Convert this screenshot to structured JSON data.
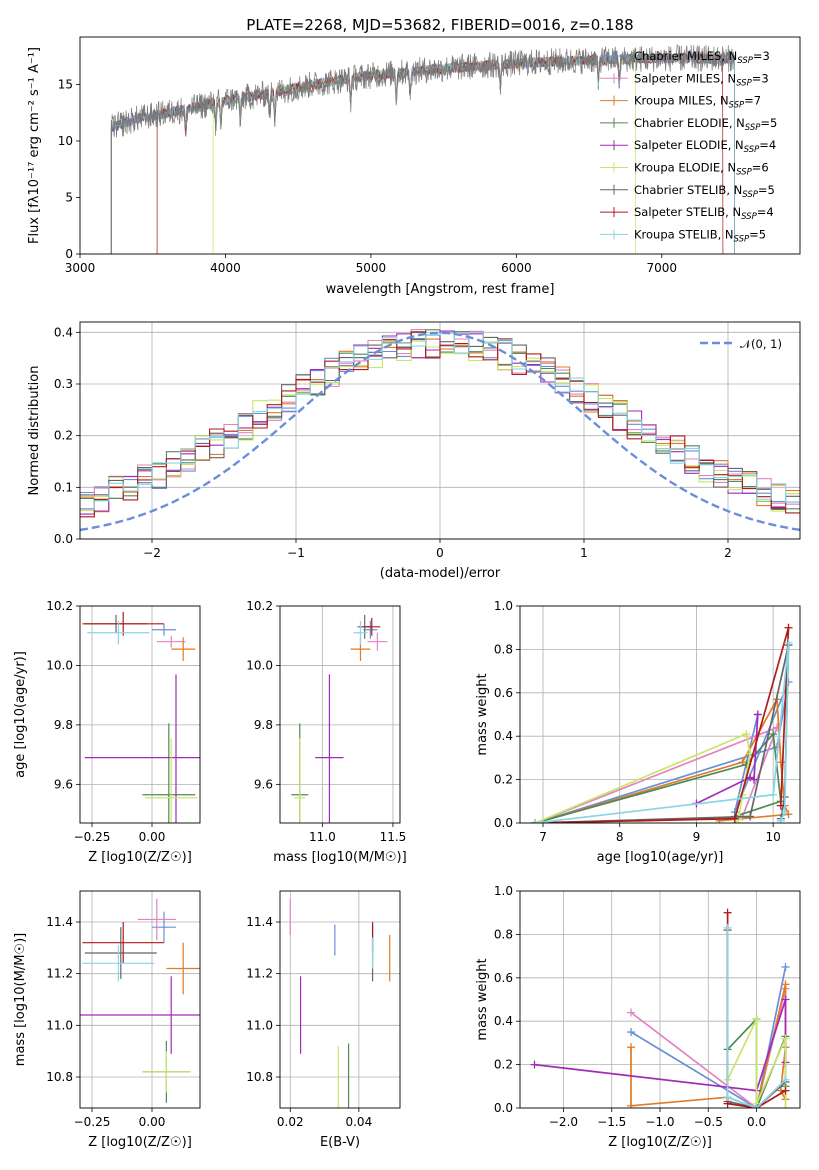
{
  "figure_title": "PLATE=2268, MJD=53682, FIBERID=0016, z=0.188",
  "colors": {
    "Chabrier MILES": "#6a8fd8",
    "Salpeter MILES": "#e383c1",
    "Kroupa MILES": "#e07b26",
    "Chabrier ELODIE": "#4e8a5a",
    "Salpeter ELODIE": "#a32ab8",
    "Kroupa ELODIE": "#c8e66a",
    "Chabrier STELIB": "#666666",
    "Salpeter STELIB": "#b01a1a",
    "Kroupa STELIB": "#86d6e6",
    "normal": "#6a8fd8"
  },
  "chart_data": [
    {
      "id": "spectrum",
      "type": "line",
      "title": "PLATE=2268, MJD=53682, FIBERID=0016, z=0.188",
      "xlabel": "wavelength [Angstrom, rest frame]",
      "ylabel": "Flux [f_λ 10^-17 erg cm^-2 s^-1 A^-1]",
      "xlim": [
        3000,
        7950
      ],
      "ylim": [
        0,
        19.2
      ],
      "xticks": [
        3000,
        4000,
        5000,
        6000,
        7000
      ],
      "yticks": [
        0,
        5,
        10,
        15
      ],
      "grid": false,
      "legend_position": "top-right",
      "spectrum_range": [
        3215,
        7500
      ],
      "continuum": {
        "x": [
          3215,
          3400,
          3600,
          3800,
          4000,
          4300,
          4600,
          5000,
          5400,
          5800,
          6200,
          6600,
          7000,
          7500
        ],
        "y": [
          11.2,
          12.0,
          12.5,
          13.0,
          13.6,
          14.2,
          15.0,
          15.8,
          16.3,
          16.7,
          17.0,
          17.2,
          17.3,
          17.3
        ]
      },
      "model_start_x": [
        3215,
        3215,
        3215,
        3215,
        3215,
        3915,
        3215,
        3530,
        3215
      ],
      "model_end_x": [
        7500,
        7500,
        7500,
        7500,
        7500,
        6820,
        7500,
        7420,
        7500
      ],
      "series": [
        {
          "name": "Chabrier MILES",
          "nssp": "3"
        },
        {
          "name": "Salpeter MILES",
          "nssp": "3"
        },
        {
          "name": "Kroupa MILES",
          "nssp": "7"
        },
        {
          "name": "Chabrier ELODIE",
          "nssp": "5"
        },
        {
          "name": "Salpeter ELODIE",
          "nssp": "4"
        },
        {
          "name": "Kroupa ELODIE",
          "nssp": "6"
        },
        {
          "name": "Chabrier STELIB",
          "nssp": "5"
        },
        {
          "name": "Salpeter STELIB",
          "nssp": "4"
        },
        {
          "name": "Kroupa STELIB",
          "nssp": "5"
        }
      ]
    },
    {
      "id": "residuals",
      "type": "histogram",
      "xlabel": "(data-model)/error",
      "ylabel": "Normed distribution",
      "xlim": [
        -2.5,
        2.5
      ],
      "ylim": [
        0,
        0.42
      ],
      "xticks": [
        -2,
        -1,
        0,
        1,
        2
      ],
      "yticks": [
        0.0,
        0.1,
        0.2,
        0.3,
        0.4
      ],
      "grid": true,
      "legend_position": "top-right",
      "normal_label": "𝒩(0, 1)",
      "bin_width": 0.1
    },
    {
      "id": "age_vs_Z",
      "type": "errorbar",
      "xlabel": "Z [log10(Z/Z☉)]",
      "ylabel": "age [log10(age/yr)]",
      "xlim": [
        -0.3,
        0.2
      ],
      "ylim": [
        9.47,
        10.2
      ],
      "xticks": [
        -0.25,
        0.0
      ],
      "yticks": [
        9.6,
        9.8,
        10.0,
        10.2
      ],
      "grid": true,
      "points": [
        {
          "series": "Chabrier MILES",
          "x": 0.05,
          "y": 10.12,
          "xerr": 0.05,
          "yerr": 0.02
        },
        {
          "series": "Salpeter MILES",
          "x": 0.08,
          "y": 10.08,
          "xerr": 0.06,
          "yerr": 0.02
        },
        {
          "series": "Kroupa MILES",
          "x": 0.13,
          "y": 10.055,
          "xerr": 0.05,
          "yerr": 0.04
        },
        {
          "series": "Chabrier ELODIE",
          "x": 0.07,
          "y": 9.565,
          "xerr": 0.11,
          "yerr": 0.24
        },
        {
          "series": "Salpeter ELODIE",
          "x": 0.1,
          "y": 9.69,
          "xerr": 0.38,
          "yerr": 0.28
        },
        {
          "series": "Kroupa ELODIE",
          "x": 0.08,
          "y": 9.555,
          "xerr": 0.11,
          "yerr": 0.2
        },
        {
          "series": "Chabrier STELIB",
          "x": -0.15,
          "y": 10.14,
          "xerr": 0.13,
          "yerr": 0.03
        },
        {
          "series": "Salpeter STELIB",
          "x": -0.12,
          "y": 10.14,
          "xerr": 0.17,
          "yerr": 0.04
        },
        {
          "series": "Kroupa STELIB",
          "x": -0.14,
          "y": 10.11,
          "xerr": 0.13,
          "yerr": 0.04
        }
      ]
    },
    {
      "id": "age_vs_mass",
      "type": "errorbar",
      "xlabel": "mass [log10(M/M☉)]",
      "ylabel": "",
      "xlim": [
        10.7,
        11.55
      ],
      "ylim": [
        9.47,
        10.2
      ],
      "xticks": [
        11.0,
        11.5
      ],
      "yticks": [
        9.6,
        9.8,
        10.0,
        10.2
      ],
      "grid": true,
      "points": [
        {
          "series": "Chabrier MILES",
          "x": 11.34,
          "y": 10.12,
          "xerr": 0.05,
          "yerr": 0.03
        },
        {
          "series": "Salpeter MILES",
          "x": 11.39,
          "y": 10.08,
          "xerr": 0.07,
          "yerr": 0.03
        },
        {
          "series": "Kroupa MILES",
          "x": 11.27,
          "y": 10.055,
          "xerr": 0.07,
          "yerr": 0.04
        },
        {
          "series": "Chabrier ELODIE",
          "x": 10.84,
          "y": 9.565,
          "xerr": 0.06,
          "yerr": 0.24
        },
        {
          "series": "Salpeter ELODIE",
          "x": 11.05,
          "y": 9.69,
          "xerr": 0.1,
          "yerr": 0.28
        },
        {
          "series": "Kroupa ELODIE",
          "x": 10.84,
          "y": 9.555,
          "xerr": 0.04,
          "yerr": 0.2
        },
        {
          "series": "Chabrier STELIB",
          "x": 11.3,
          "y": 10.13,
          "xerr": 0.05,
          "yerr": 0.04
        },
        {
          "series": "Salpeter STELIB",
          "x": 11.35,
          "y": 10.13,
          "xerr": 0.06,
          "yerr": 0.03
        },
        {
          "series": "Kroupa STELIB",
          "x": 11.27,
          "y": 10.11,
          "xerr": 0.05,
          "yerr": 0.04
        }
      ]
    },
    {
      "id": "weight_vs_age",
      "type": "line",
      "xlabel": "age [log10(age/yr)]",
      "ylabel": "mass weight",
      "xlim": [
        6.7,
        10.35
      ],
      "ylim": [
        0,
        1.0
      ],
      "xticks": [
        7,
        8,
        9,
        10
      ],
      "yticks": [
        0.0,
        0.2,
        0.4,
        0.6,
        0.8,
        1.0
      ],
      "grid": true,
      "series": [
        {
          "name": "Chabrier MILES",
          "x": [
            6.9,
            10.05,
            10.2,
            9.5,
            9.8
          ],
          "y": [
            0.0,
            0.35,
            0.65,
            0.05,
            0.5
          ]
        },
        {
          "name": "Salpeter MILES",
          "x": [
            6.9,
            10.05,
            9.6
          ],
          "y": [
            0.0,
            0.44,
            0.03
          ]
        },
        {
          "name": "Kroupa MILES",
          "x": [
            6.9,
            9.6,
            10.05,
            10.1,
            10.15,
            10.2,
            9.3
          ],
          "y": [
            0.0,
            0.28,
            0.57,
            0.28,
            0.08,
            0.04,
            0.01
          ]
        },
        {
          "name": "Chabrier ELODIE",
          "x": [
            6.9,
            9.65,
            10.0,
            10.1,
            9.5
          ],
          "y": [
            0.0,
            0.27,
            0.41,
            0.1,
            0.03
          ]
        },
        {
          "name": "Salpeter ELODIE",
          "x": [
            9.0,
            9.7,
            9.75,
            9.8
          ],
          "y": [
            0.09,
            0.21,
            0.2,
            0.5
          ]
        },
        {
          "name": "Kroupa ELODIE",
          "x": [
            6.9,
            9.65,
            9.7,
            9.6,
            9.55,
            9.5
          ],
          "y": [
            0.0,
            0.41,
            0.32,
            0.13,
            0.02,
            0.0
          ]
        },
        {
          "name": "Chabrier STELIB",
          "x": [
            6.9,
            9.7,
            10.2,
            10.15,
            10.1
          ],
          "y": [
            0.0,
            0.03,
            0.82,
            0.12,
            0.02
          ]
        },
        {
          "name": "Salpeter STELIB",
          "x": [
            6.9,
            9.5,
            10.2,
            10.1
          ],
          "y": [
            0.0,
            0.02,
            0.9,
            0.08
          ]
        },
        {
          "name": "Kroupa STELIB",
          "x": [
            6.9,
            10.0,
            10.2,
            10.15,
            10.1
          ],
          "y": [
            0.0,
            0.13,
            0.83,
            0.05,
            0.01
          ]
        }
      ]
    },
    {
      "id": "mass_vs_Z",
      "type": "errorbar",
      "xlabel": "Z [log10(Z/Z☉)]",
      "ylabel": "mass [log10(M/M☉)]",
      "xlim": [
        -0.3,
        0.2
      ],
      "ylim": [
        10.68,
        11.52
      ],
      "xticks": [
        -0.25,
        0.0
      ],
      "yticks": [
        10.8,
        11.0,
        11.2,
        11.4
      ],
      "grid": true,
      "points": [
        {
          "series": "Chabrier MILES",
          "x": 0.05,
          "y": 11.38,
          "xerr": 0.05,
          "yerr": 0.06
        },
        {
          "series": "Salpeter MILES",
          "x": 0.02,
          "y": 11.41,
          "xerr": 0.08,
          "yerr": 0.08
        },
        {
          "series": "Kroupa MILES",
          "x": 0.13,
          "y": 11.22,
          "xerr": 0.07,
          "yerr": 0.1
        },
        {
          "series": "Chabrier ELODIE",
          "x": 0.06,
          "y": 10.82,
          "xerr": 0.1,
          "yerr": 0.12
        },
        {
          "series": "Salpeter ELODIE",
          "x": 0.08,
          "y": 11.04,
          "xerr": 0.38,
          "yerr": 0.15
        },
        {
          "series": "Kroupa ELODIE",
          "x": 0.06,
          "y": 10.82,
          "xerr": 0.1,
          "yerr": 0.08
        },
        {
          "series": "Chabrier STELIB",
          "x": -0.13,
          "y": 11.28,
          "xerr": 0.15,
          "yerr": 0.1
        },
        {
          "series": "Salpeter STELIB",
          "x": -0.12,
          "y": 11.32,
          "xerr": 0.17,
          "yerr": 0.08
        },
        {
          "series": "Kroupa STELIB",
          "x": -0.14,
          "y": 11.24,
          "xerr": 0.15,
          "yerr": 0.07
        }
      ]
    },
    {
      "id": "mass_vs_ebv",
      "type": "errorbar",
      "xlabel": "E(B-V)",
      "ylabel": "",
      "xlim": [
        0.017,
        0.052
      ],
      "ylim": [
        10.68,
        11.52
      ],
      "xticks": [
        0.02,
        0.04
      ],
      "yticks": [
        10.8,
        11.0,
        11.2,
        11.4
      ],
      "grid": true,
      "points": [
        {
          "series": "Chabrier MILES",
          "x": 0.033,
          "y": 11.33,
          "xerr": 0.0,
          "yerr": 0.06
        },
        {
          "series": "Salpeter MILES",
          "x": 0.02,
          "y": 11.42,
          "xerr": 0.0,
          "yerr": 0.07
        },
        {
          "series": "Kroupa MILES",
          "x": 0.049,
          "y": 11.26,
          "xerr": 0.0,
          "yerr": 0.09
        },
        {
          "series": "Chabrier ELODIE",
          "x": 0.037,
          "y": 10.8,
          "xerr": 0.0,
          "yerr": 0.13
        },
        {
          "series": "Salpeter ELODIE",
          "x": 0.023,
          "y": 11.04,
          "xerr": 0.0,
          "yerr": 0.15
        },
        {
          "series": "Kroupa ELODIE",
          "x": 0.034,
          "y": 10.8,
          "xerr": 0.0,
          "yerr": 0.12
        },
        {
          "series": "Chabrier STELIB",
          "x": 0.044,
          "y": 11.28,
          "xerr": 0.0,
          "yerr": 0.11
        },
        {
          "series": "Salpeter STELIB",
          "x": 0.044,
          "y": 11.34,
          "xerr": 0.0,
          "yerr": 0.06
        },
        {
          "series": "Kroupa STELIB",
          "x": 0.044,
          "y": 11.28,
          "xerr": 0.0,
          "yerr": 0.06
        }
      ]
    },
    {
      "id": "weight_vs_Z",
      "type": "line",
      "xlabel": "Z [log10(Z/Z☉)]",
      "ylabel": "mass weight",
      "xlim": [
        -2.45,
        0.45
      ],
      "ylim": [
        0,
        1.0
      ],
      "xticks": [
        -2.0,
        -1.5,
        -1.0,
        -0.5,
        0.0
      ],
      "yticks": [
        0.0,
        0.2,
        0.4,
        0.6,
        0.8,
        1.0
      ],
      "grid": true,
      "series": [
        {
          "name": "Chabrier MILES",
          "x": [
            -1.3,
            0.0,
            0.3
          ],
          "y": [
            0.35,
            0.0,
            0.65
          ]
        },
        {
          "name": "Salpeter MILES",
          "x": [
            -1.3,
            0.0,
            0.3
          ],
          "y": [
            0.44,
            0.0,
            0.55
          ]
        },
        {
          "name": "Kroupa MILES",
          "x": [
            -1.3,
            -1.3,
            -0.3,
            0.0,
            0.3,
            0.3,
            0.25,
            0.3
          ],
          "y": [
            0.28,
            0.01,
            0.05,
            0.0,
            0.57,
            0.04,
            0.08,
            0.28
          ]
        },
        {
          "name": "Chabrier ELODIE",
          "x": [
            -0.3,
            0.0,
            0.0,
            0.3,
            0.3
          ],
          "y": [
            0.27,
            0.41,
            0.0,
            0.33,
            0.1
          ]
        },
        {
          "name": "Salpeter ELODIE",
          "x": [
            -2.3,
            0.0,
            0.3,
            0.3
          ],
          "y": [
            0.2,
            0.08,
            0.5,
            0.21
          ]
        },
        {
          "name": "Kroupa ELODIE",
          "x": [
            -0.3,
            0.0,
            0.0,
            0.3,
            0.3
          ],
          "y": [
            0.13,
            0.41,
            0.02,
            0.32,
            0.0
          ]
        },
        {
          "name": "Chabrier STELIB",
          "x": [
            -0.3,
            -0.3,
            0.0,
            0.3
          ],
          "y": [
            0.82,
            0.03,
            0.0,
            0.12
          ]
        },
        {
          "name": "Salpeter STELIB",
          "x": [
            -0.3,
            -0.3,
            0.0,
            0.3
          ],
          "y": [
            0.9,
            0.02,
            0.0,
            0.08
          ]
        },
        {
          "name": "Kroupa STELIB",
          "x": [
            -0.3,
            -0.3,
            0.0,
            0.3
          ],
          "y": [
            0.83,
            0.05,
            0.0,
            0.13
          ]
        }
      ]
    }
  ]
}
